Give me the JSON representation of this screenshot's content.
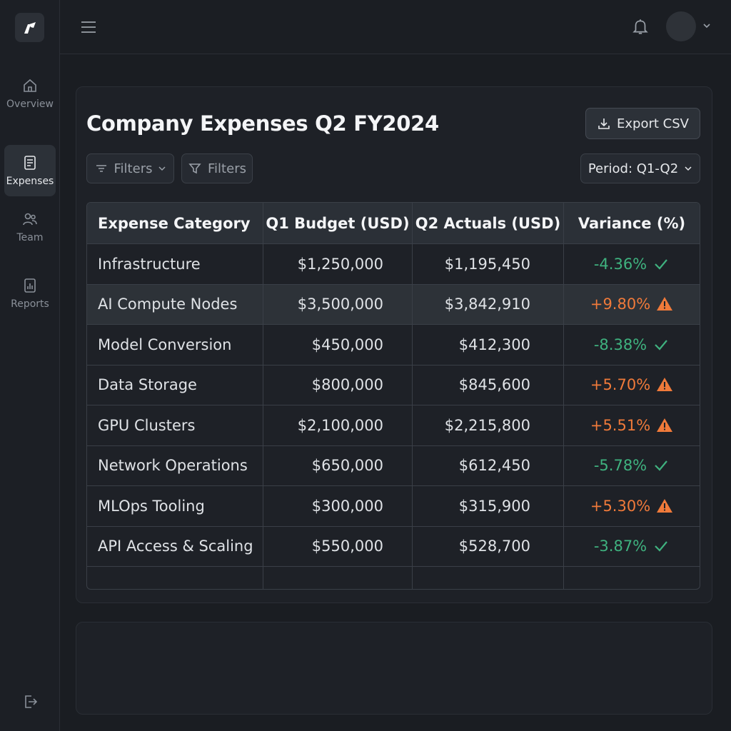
{
  "sidebar": {
    "items": [
      {
        "label": "Overview",
        "icon": "home-icon"
      },
      {
        "label": "Expenses",
        "icon": "ledger-icon",
        "active": true
      },
      {
        "label": "Team",
        "icon": "users-icon"
      },
      {
        "label": "Reports",
        "icon": "chart-icon"
      }
    ]
  },
  "card": {
    "title": "Company Expenses Q2 FY2024",
    "export_label": "Export CSV",
    "filters1_label": "Filters",
    "filters2_label": "Filters",
    "period_label": "Period: Q1-Q2"
  },
  "table": {
    "headers": [
      "Expense Category",
      "Q1 Budget (USD)",
      "Q2 Actuals (USD)",
      "Variance (%)"
    ],
    "rows": [
      {
        "category": "Infrastructure",
        "budget": "$1,250,000",
        "actual": "$1,195,450",
        "variance": "-4.36%",
        "status": "good"
      },
      {
        "category": "AI Compute Nodes",
        "budget": "$3,500,000",
        "actual": "$3,842,910",
        "variance": "+9.80%",
        "status": "bad"
      },
      {
        "category": "Model Conversion",
        "budget": "$450,000",
        "actual": "$412,300",
        "variance": "-8.38%",
        "status": "good"
      },
      {
        "category": "Data Storage",
        "budget": "$800,000",
        "actual": "$845,600",
        "variance": "+5.70%",
        "status": "bad"
      },
      {
        "category": "GPU Clusters",
        "budget": "$2,100,000",
        "actual": "$2,215,800",
        "variance": "+5.51%",
        "status": "bad"
      },
      {
        "category": "Network Operations",
        "budget": "$650,000",
        "actual": "$612,450",
        "variance": "-5.78%",
        "status": "good"
      },
      {
        "category": "MLOps Tooling",
        "budget": "$300,000",
        "actual": "$315,900",
        "variance": "+5.30%",
        "status": "bad"
      },
      {
        "category": "API Access & Scaling",
        "budget": "$550,000",
        "actual": "$528,700",
        "variance": "-3.87%",
        "status": "good"
      }
    ]
  },
  "colors": {
    "good": "#3fb27f",
    "bad": "#f07a3a"
  }
}
